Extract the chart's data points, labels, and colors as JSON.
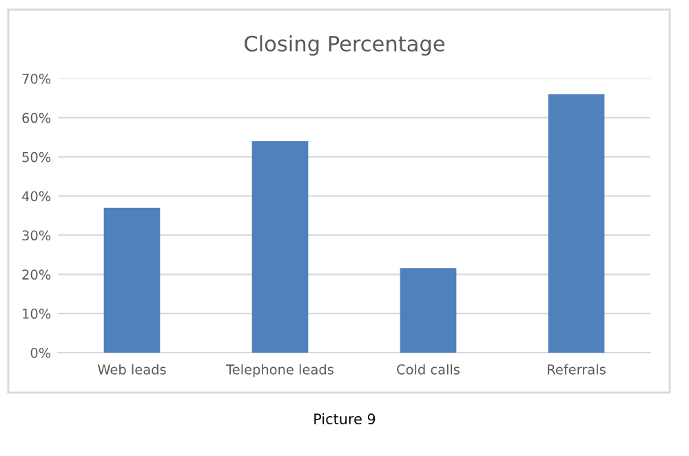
{
  "chart_data": {
    "type": "bar",
    "title": "Closing Percentage",
    "categories": [
      "Web leads",
      "Telephone leads",
      "Cold calls",
      "Referrals"
    ],
    "values": [
      37,
      54,
      21.6,
      66
    ],
    "color": "#4f81bd",
    "ylim": [
      0,
      70
    ],
    "yticks": [
      {
        "value": 0,
        "label": "0%"
      },
      {
        "value": 10,
        "label": "10%"
      },
      {
        "value": 20,
        "label": "20%"
      },
      {
        "value": 30,
        "label": "30%"
      },
      {
        "value": 40,
        "label": "40%"
      },
      {
        "value": 50,
        "label": "50%"
      },
      {
        "value": 60,
        "label": "60%"
      },
      {
        "value": 70,
        "label": "70%"
      }
    ],
    "grid": "y",
    "annotations": [
      "Picture 9"
    ]
  }
}
